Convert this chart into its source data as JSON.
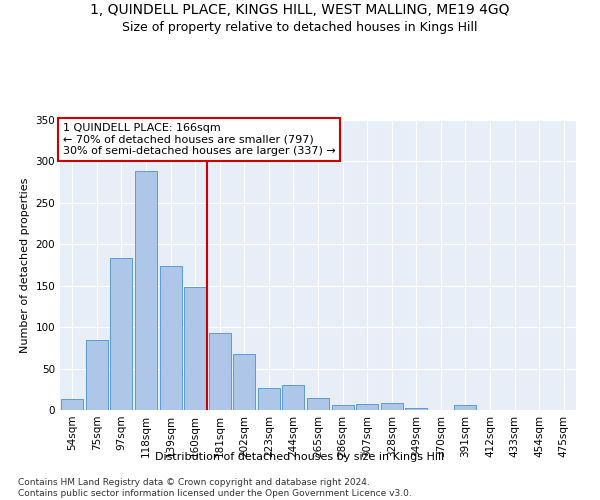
{
  "title": "1, QUINDELL PLACE, KINGS HILL, WEST MALLING, ME19 4GQ",
  "subtitle": "Size of property relative to detached houses in Kings Hill",
  "xlabel": "Distribution of detached houses by size in Kings Hill",
  "ylabel": "Number of detached properties",
  "categories": [
    "54sqm",
    "75sqm",
    "97sqm",
    "118sqm",
    "139sqm",
    "160sqm",
    "181sqm",
    "202sqm",
    "223sqm",
    "244sqm",
    "265sqm",
    "286sqm",
    "307sqm",
    "328sqm",
    "349sqm",
    "370sqm",
    "391sqm",
    "412sqm",
    "433sqm",
    "454sqm",
    "475sqm"
  ],
  "values": [
    13,
    85,
    184,
    288,
    174,
    148,
    93,
    68,
    26,
    30,
    14,
    6,
    7,
    9,
    3,
    0,
    6,
    0,
    0,
    0,
    0
  ],
  "bar_color": "#aec6e8",
  "bar_edge_color": "#5b9bd5",
  "reference_line_label": "1 QUINDELL PLACE: 166sqm",
  "annotation_line1": "← 70% of detached houses are smaller (797)",
  "annotation_line2": "30% of semi-detached houses are larger (337) →",
  "annotation_box_color": "#ffffff",
  "annotation_box_edge_color": "#cc0000",
  "vline_color": "#cc0000",
  "ylim": [
    0,
    350
  ],
  "yticks": [
    0,
    50,
    100,
    150,
    200,
    250,
    300,
    350
  ],
  "background_color": "#e8eef8",
  "footer": "Contains HM Land Registry data © Crown copyright and database right 2024.\nContains public sector information licensed under the Open Government Licence v3.0.",
  "title_fontsize": 10,
  "subtitle_fontsize": 9,
  "axis_label_fontsize": 8,
  "tick_fontsize": 7.5,
  "annotation_fontsize": 8,
  "footer_fontsize": 6.5
}
